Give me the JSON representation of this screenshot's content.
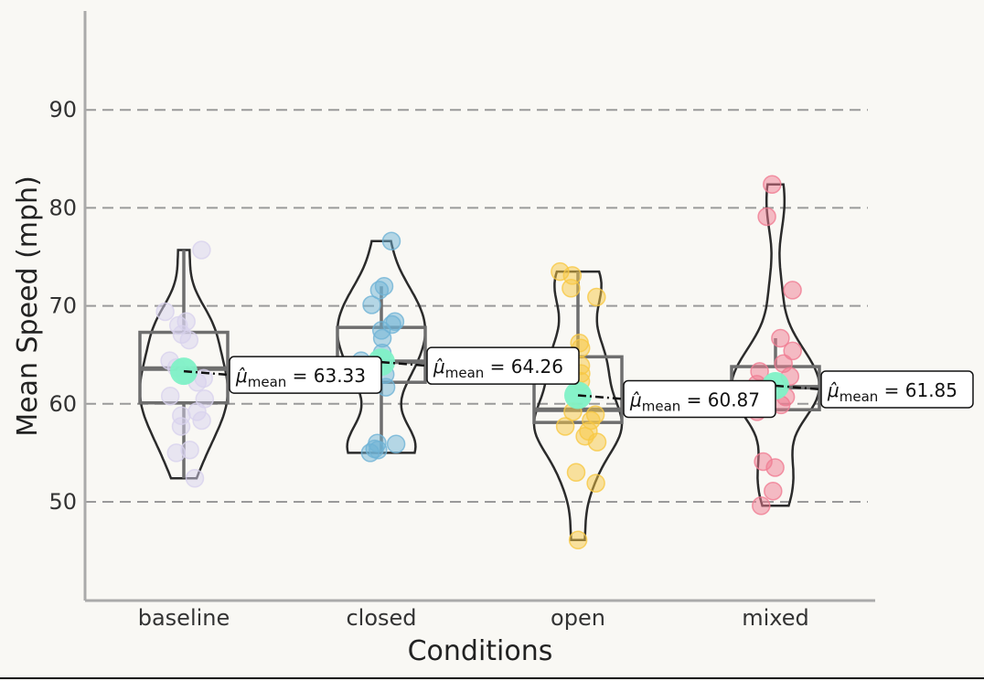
{
  "chart_data": {
    "type": "violin",
    "xlabel": "Conditions",
    "ylabel": "Mean Speed (mph)",
    "ylim": [
      40,
      100
    ],
    "yticks": [
      50,
      60,
      70,
      80,
      90
    ],
    "grid": "horizontal dashed",
    "categories": [
      "baseline",
      "closed",
      "open",
      "mixed"
    ],
    "colors": {
      "baseline": "#d8d2ee",
      "closed": "#6fb3d6",
      "open": "#f7c843",
      "mixed": "#f07c92",
      "mean_marker": "#7ff1c6",
      "box": "#6e6e6e",
      "violin": "#2b2b2b",
      "grid": "#9a9a9a"
    },
    "series": [
      {
        "category": "baseline",
        "mean": 63.33,
        "mean_label": "63.33",
        "box": {
          "q1": 60.1,
          "median": 63.6,
          "q3": 67.3,
          "whisker_low": 52.4,
          "whisker_high": 75.7
        },
        "points": [
          75.7,
          69.4,
          68.4,
          68.0,
          67.1,
          66.5,
          64.4,
          63.7,
          63.0,
          62.6,
          62.2,
          60.8,
          60.5,
          59.2,
          58.8,
          58.3,
          57.7,
          55.3,
          55.0,
          52.4
        ]
      },
      {
        "category": "closed",
        "mean": 64.26,
        "mean_label": "64.26",
        "box": {
          "q1": 62.2,
          "median": 64.3,
          "q3": 67.8,
          "whisker_low": 55.0,
          "whisker_high": 72.0
        },
        "points": [
          76.6,
          72.0,
          71.6,
          70.1,
          68.4,
          68.1,
          67.5,
          66.7,
          65.2,
          64.4,
          63.0,
          61.7,
          56.0,
          55.9,
          55.4,
          55.3,
          55.0
        ]
      },
      {
        "category": "open",
        "mean": 60.87,
        "mean_label": "60.87",
        "box": {
          "q1": 58.1,
          "median": 59.4,
          "q3": 64.8,
          "whisker_low": 58.1,
          "whisker_high": 73.5
        },
        "points": [
          73.5,
          73.1,
          71.8,
          70.9,
          66.2,
          65.7,
          63.9,
          63.1,
          62.3,
          59.2,
          58.9,
          58.3,
          57.7,
          57.2,
          56.7,
          56.1,
          53.0,
          51.9,
          46.1
        ]
      },
      {
        "category": "mixed",
        "mean": 61.85,
        "mean_label": "61.85",
        "box": {
          "q1": 59.4,
          "median": 61.7,
          "q3": 63.8,
          "whisker_low": 59.4,
          "whisker_high": 66.7
        },
        "points": [
          82.4,
          79.1,
          71.6,
          66.7,
          65.4,
          64.1,
          63.3,
          62.8,
          62.0,
          61.4,
          60.7,
          59.9,
          59.5,
          59.2,
          54.1,
          53.5,
          51.1,
          49.6
        ]
      }
    ],
    "annotation_prefix": "μ̂",
    "annotation_subscript": "mean"
  }
}
